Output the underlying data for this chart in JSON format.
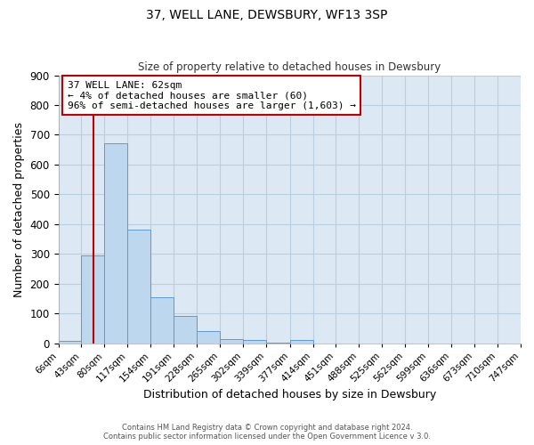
{
  "title": "37, WELL LANE, DEWSBURY, WF13 3SP",
  "subtitle": "Size of property relative to detached houses in Dewsbury",
  "xlabel": "Distribution of detached houses by size in Dewsbury",
  "ylabel": "Number of detached properties",
  "bin_edges": [
    6,
    43,
    80,
    117,
    154,
    191,
    228,
    265,
    302,
    339,
    377,
    414,
    451,
    488,
    525,
    562,
    599,
    636,
    673,
    710,
    747
  ],
  "bin_labels": [
    "6sqm",
    "43sqm",
    "80sqm",
    "117sqm",
    "154sqm",
    "191sqm",
    "228sqm",
    "265sqm",
    "302sqm",
    "339sqm",
    "377sqm",
    "414sqm",
    "451sqm",
    "488sqm",
    "525sqm",
    "562sqm",
    "599sqm",
    "636sqm",
    "673sqm",
    "710sqm",
    "747sqm"
  ],
  "counts": [
    8,
    296,
    672,
    382,
    153,
    90,
    40,
    15,
    12,
    3,
    11,
    0,
    0,
    0,
    0,
    0,
    0,
    0,
    0,
    0
  ],
  "bar_color": "#bdd7ee",
  "bar_edge_color": "#5b9bd5",
  "property_value": 62,
  "property_label": "37 WELL LANE: 62sqm",
  "annotation_line1": "← 4% of detached houses are smaller (60)",
  "annotation_line2": "96% of semi-detached houses are larger (1,603) →",
  "vline_color": "#c00000",
  "annotation_box_edge_color": "#c00000",
  "ylim": [
    0,
    900
  ],
  "yticks": [
    0,
    100,
    200,
    300,
    400,
    500,
    600,
    700,
    800,
    900
  ],
  "footer1": "Contains HM Land Registry data © Crown copyright and database right 2024.",
  "footer2": "Contains public sector information licensed under the Open Government Licence v 3.0.",
  "background_color": "#ffffff",
  "plot_bg_color": "#dce9f5",
  "grid_color": "#b8cfe0"
}
